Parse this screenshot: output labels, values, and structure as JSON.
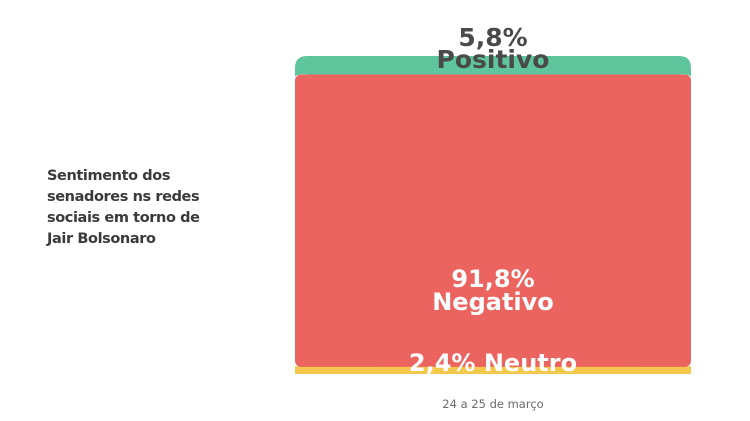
{
  "title": "Sentimento dos\nsenadores ns redes\nsociais em torno de\nJair Bolsonaro",
  "period": "24 a 25 de março",
  "chart_data": {
    "type": "bar",
    "stacked": true,
    "title": "Sentimento dos senadores ns redes sociais em torno de Jair Bolsonaro",
    "categories": [
      "24 a 25 de março"
    ],
    "unit": "%",
    "ylim": [
      0,
      100
    ],
    "series": [
      {
        "name": "Neutro",
        "value": 2.4,
        "label": "2,4% Neutro",
        "color": "#f2c94c"
      },
      {
        "name": "Negativo",
        "value": 91.8,
        "label_value": "91,8%",
        "label_name": "Negativo",
        "color": "#ec6460"
      },
      {
        "name": "Positivo",
        "value": 5.8,
        "label_value": "5,8%",
        "label_name": "Positivo",
        "color": "#5fc59c"
      }
    ]
  }
}
